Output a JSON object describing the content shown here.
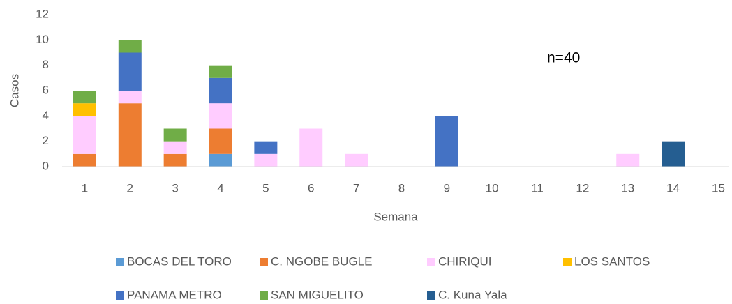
{
  "chart_data": {
    "type": "stacked-bar",
    "y_label": "Casos",
    "x_label": "Semana",
    "annotation": "n=40",
    "categories": [
      "1",
      "2",
      "3",
      "4",
      "5",
      "6",
      "7",
      "8",
      "9",
      "10",
      "11",
      "12",
      "13",
      "14",
      "15"
    ],
    "series": [
      {
        "name": "BOCAS DEL TORO",
        "color": "#5b9bd5",
        "values": [
          0,
          0,
          0,
          1,
          0,
          0,
          0,
          0,
          0,
          0,
          0,
          0,
          0,
          0,
          0
        ]
      },
      {
        "name": "C. NGOBE BUGLE",
        "color": "#ed7d31",
        "values": [
          1,
          5,
          1,
          2,
          0,
          0,
          0,
          0,
          0,
          0,
          0,
          0,
          0,
          0,
          0
        ]
      },
      {
        "name": "CHIRIQUI",
        "color": "#ffccff",
        "values": [
          3,
          1,
          1,
          2,
          1,
          3,
          1,
          0,
          0,
          0,
          0,
          0,
          1,
          0,
          0
        ]
      },
      {
        "name": "LOS SANTOS",
        "color": "#ffc000",
        "values": [
          1,
          0,
          0,
          0,
          0,
          0,
          0,
          0,
          0,
          0,
          0,
          0,
          0,
          0,
          0
        ]
      },
      {
        "name": "PANAMA METRO",
        "color": "#4472c4",
        "values": [
          0,
          3,
          0,
          2,
          1,
          0,
          0,
          0,
          4,
          0,
          0,
          0,
          0,
          0,
          0
        ]
      },
      {
        "name": "SAN MIGUELITO",
        "color": "#70ad47",
        "values": [
          1,
          1,
          1,
          1,
          0,
          0,
          0,
          0,
          0,
          0,
          0,
          0,
          0,
          0,
          0
        ]
      },
      {
        "name": "C. Kuna Yala",
        "color": "#255e91",
        "values": [
          0,
          0,
          0,
          0,
          0,
          0,
          0,
          0,
          0,
          0,
          0,
          0,
          0,
          2,
          0
        ]
      }
    ],
    "ylim": [
      0,
      12
    ],
    "yticks": [
      0,
      2,
      4,
      6,
      8,
      10,
      12
    ],
    "grid": false
  }
}
